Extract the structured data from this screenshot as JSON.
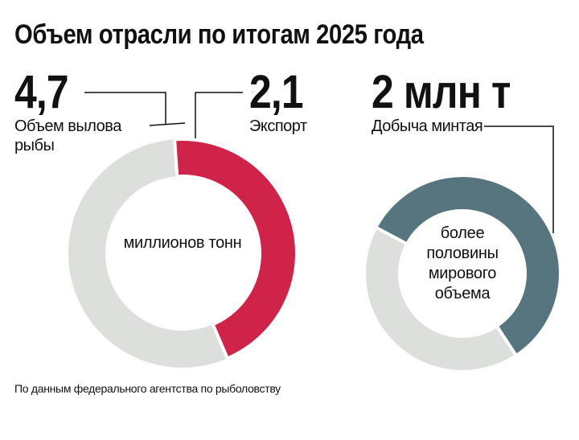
{
  "title": "Объем отрасли по итогам 2025 года",
  "source": "По данным федерального агентства по рыболовству",
  "chart_data": [
    {
      "type": "donut",
      "total": {
        "value": 4.7,
        "label": "4,7",
        "name": "Объем вылова рыбы",
        "color": "#dcdfdb"
      },
      "segment": {
        "value": 2.1,
        "label": "2,1",
        "name": "Экспорт",
        "color": "#d0234a"
      },
      "center_label": "миллионов тонн"
    },
    {
      "type": "donut",
      "headline": {
        "value": 2,
        "label": "2 млн т"
      },
      "name": "Добыча минтая",
      "values": [
        58,
        42
      ],
      "colors": [
        "#57757f",
        "#dcdfdb"
      ],
      "center_label": "более половины мирового объема"
    }
  ]
}
